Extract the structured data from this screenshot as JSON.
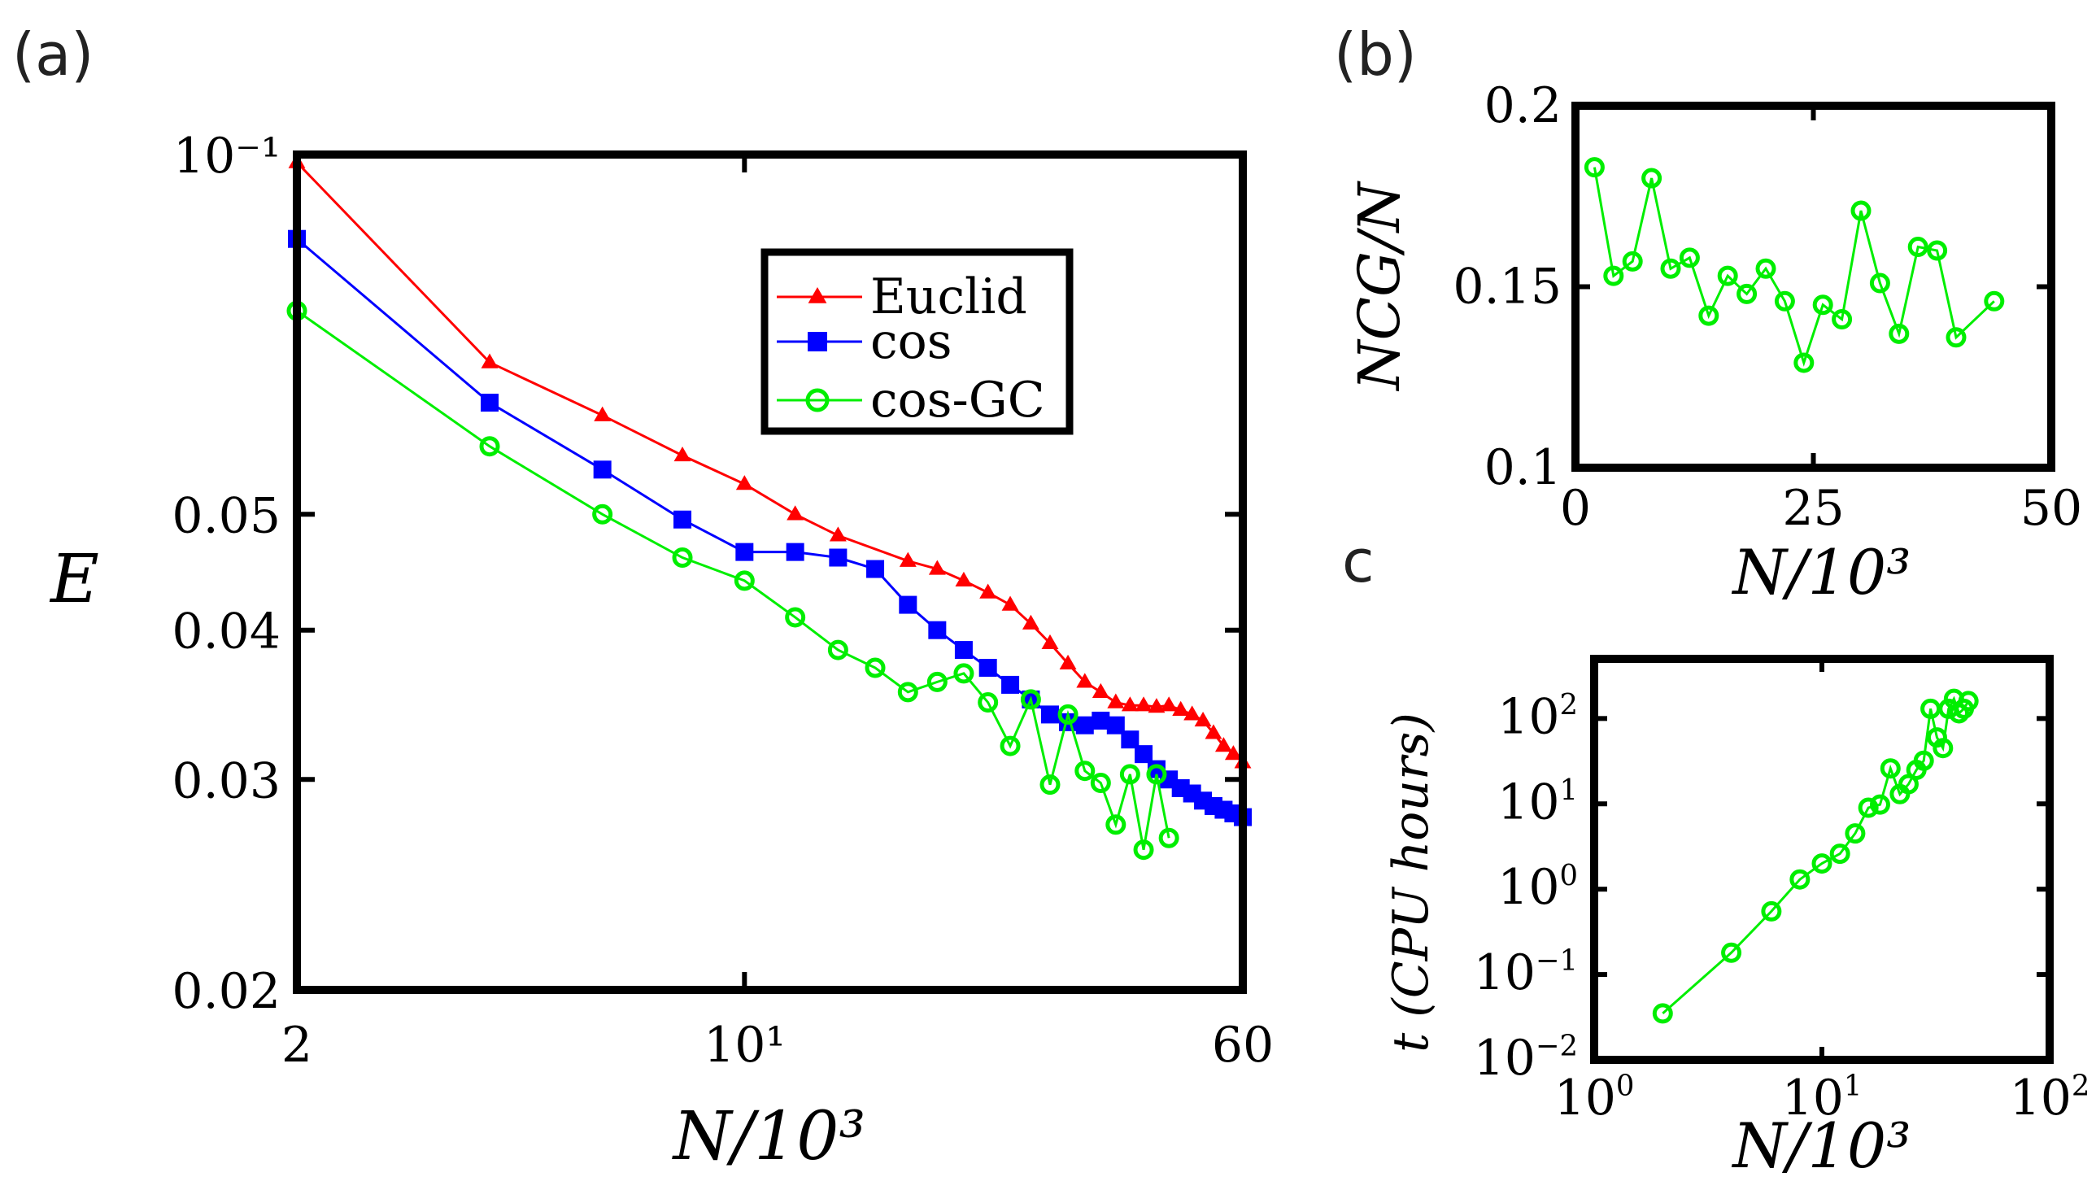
{
  "chart_data": [
    {
      "panel": "(a)",
      "type": "line",
      "x_scale": "log",
      "y_scale": "log",
      "xlim": [
        2,
        60
      ],
      "ylim": [
        0.02,
        0.1
      ],
      "xlabel": "N/10³",
      "ylabel": "E",
      "x_ticks": [
        {
          "value": 2,
          "label": "2"
        },
        {
          "value": 10,
          "label": "10¹"
        },
        {
          "value": 60,
          "label": "60"
        }
      ],
      "y_ticks": [
        {
          "value": 0.1,
          "label": "10⁻¹"
        },
        {
          "value": 0.05,
          "label": "0.05"
        },
        {
          "value": 0.04,
          "label": "0.04"
        },
        {
          "value": 0.03,
          "label": "0.03"
        },
        {
          "value": 0.02,
          "label": "0.02"
        }
      ],
      "legend_position": "upper-right",
      "series": [
        {
          "name": "Euclid",
          "color": "#ff0000",
          "marker": "triangle",
          "x": [
            2,
            4,
            6,
            8,
            10,
            12,
            14,
            18,
            20,
            22,
            24,
            26,
            28,
            30,
            32,
            34,
            36,
            38,
            40,
            42,
            44,
            46,
            48,
            50,
            52,
            54,
            56,
            58,
            60
          ],
          "y": [
            0.0985,
            0.067,
            0.0605,
            0.056,
            0.053,
            0.05,
            0.048,
            0.0457,
            0.045,
            0.044,
            0.043,
            0.042,
            0.0405,
            0.039,
            0.0375,
            0.0362,
            0.0355,
            0.0348,
            0.0346,
            0.0346,
            0.0345,
            0.0346,
            0.0343,
            0.034,
            0.0336,
            0.0328,
            0.032,
            0.0315,
            0.031
          ]
        },
        {
          "name": "cos",
          "color": "#0000ff",
          "marker": "square",
          "x": [
            2,
            4,
            6,
            8,
            10,
            12,
            14,
            16,
            18,
            20,
            22,
            24,
            26,
            28,
            30,
            32,
            34,
            36,
            38,
            40,
            42,
            44,
            46,
            48,
            50,
            52,
            54,
            56,
            58,
            60
          ],
          "y": [
            0.085,
            0.062,
            0.0545,
            0.0495,
            0.0465,
            0.0465,
            0.046,
            0.045,
            0.042,
            0.04,
            0.0385,
            0.0372,
            0.036,
            0.035,
            0.034,
            0.0335,
            0.0333,
            0.0336,
            0.0333,
            0.0324,
            0.0315,
            0.0306,
            0.03,
            0.0295,
            0.0292,
            0.0288,
            0.0285,
            0.0283,
            0.0281,
            0.0279
          ]
        },
        {
          "name": "cos-GC",
          "color": "#00ee00",
          "marker": "circle",
          "x": [
            2,
            4,
            6,
            8,
            10,
            12,
            14,
            16,
            18,
            20,
            22,
            24,
            26,
            28,
            30,
            32,
            34,
            36,
            38,
            40,
            42,
            44,
            46
          ],
          "y": [
            0.074,
            0.057,
            0.05,
            0.046,
            0.044,
            0.041,
            0.0385,
            0.0372,
            0.0355,
            0.0362,
            0.0368,
            0.0348,
            0.032,
            0.035,
            0.0297,
            0.034,
            0.0305,
            0.0298,
            0.0275,
            0.0303,
            0.0262,
            0.0303,
            0.0268
          ]
        }
      ]
    },
    {
      "panel": "(b)",
      "type": "line",
      "x_scale": "linear",
      "y_scale": "linear",
      "xlim": [
        0,
        50
      ],
      "ylim": [
        0.1,
        0.2
      ],
      "xlabel": "N/10³",
      "ylabel": "NCG/N",
      "x_ticks": [
        {
          "value": 0,
          "label": "0"
        },
        {
          "value": 25,
          "label": "25"
        },
        {
          "value": 50,
          "label": "50"
        }
      ],
      "y_ticks": [
        {
          "value": 0.2,
          "label": "0.2"
        },
        {
          "value": 0.15,
          "label": "0.15"
        },
        {
          "value": 0.1,
          "label": "0.1"
        }
      ],
      "series": [
        {
          "color": "#00ee00",
          "marker": "circle",
          "x": [
            2,
            4,
            6,
            8,
            10,
            12,
            14,
            16,
            18,
            20,
            22,
            24,
            26,
            28,
            30,
            32,
            34,
            36,
            38,
            40,
            44
          ],
          "y": [
            0.183,
            0.153,
            0.157,
            0.18,
            0.155,
            0.158,
            0.142,
            0.153,
            0.148,
            0.155,
            0.146,
            0.129,
            0.145,
            0.141,
            0.171,
            0.151,
            0.137,
            0.161,
            0.16,
            0.136,
            0.146
          ]
        }
      ]
    },
    {
      "panel": "c",
      "type": "line",
      "x_scale": "log",
      "y_scale": "log",
      "xlim": [
        1,
        100
      ],
      "ylim": [
        0.01,
        500
      ],
      "xlabel": "N/10³",
      "ylabel": "t (CPU hours)",
      "x_ticks": [
        {
          "value": 1,
          "base": "10",
          "exp": "0"
        },
        {
          "value": 10,
          "base": "10",
          "exp": "1"
        },
        {
          "value": 100,
          "base": "10",
          "exp": "2"
        }
      ],
      "y_ticks": [
        {
          "value": 100,
          "base": "10",
          "exp": "2"
        },
        {
          "value": 10,
          "base": "10",
          "exp": "1"
        },
        {
          "value": 1,
          "base": "10",
          "exp": "0"
        },
        {
          "value": 0.1,
          "base": "10",
          "exp": "−1"
        },
        {
          "value": 0.01,
          "base": "10",
          "exp": "−2"
        }
      ],
      "series": [
        {
          "color": "#00ee00",
          "marker": "circle",
          "x": [
            2,
            4,
            6,
            8,
            10,
            12,
            14,
            16,
            18,
            20,
            22,
            24,
            26,
            28,
            30,
            32,
            34,
            36,
            38,
            40,
            42,
            44
          ],
          "y": [
            0.035,
            0.18,
            0.55,
            1.3,
            2.0,
            2.6,
            4.5,
            9.0,
            9.8,
            26,
            13,
            17,
            25,
            32,
            130,
            60,
            45,
            130,
            170,
            115,
            130,
            160
          ]
        }
      ]
    }
  ]
}
